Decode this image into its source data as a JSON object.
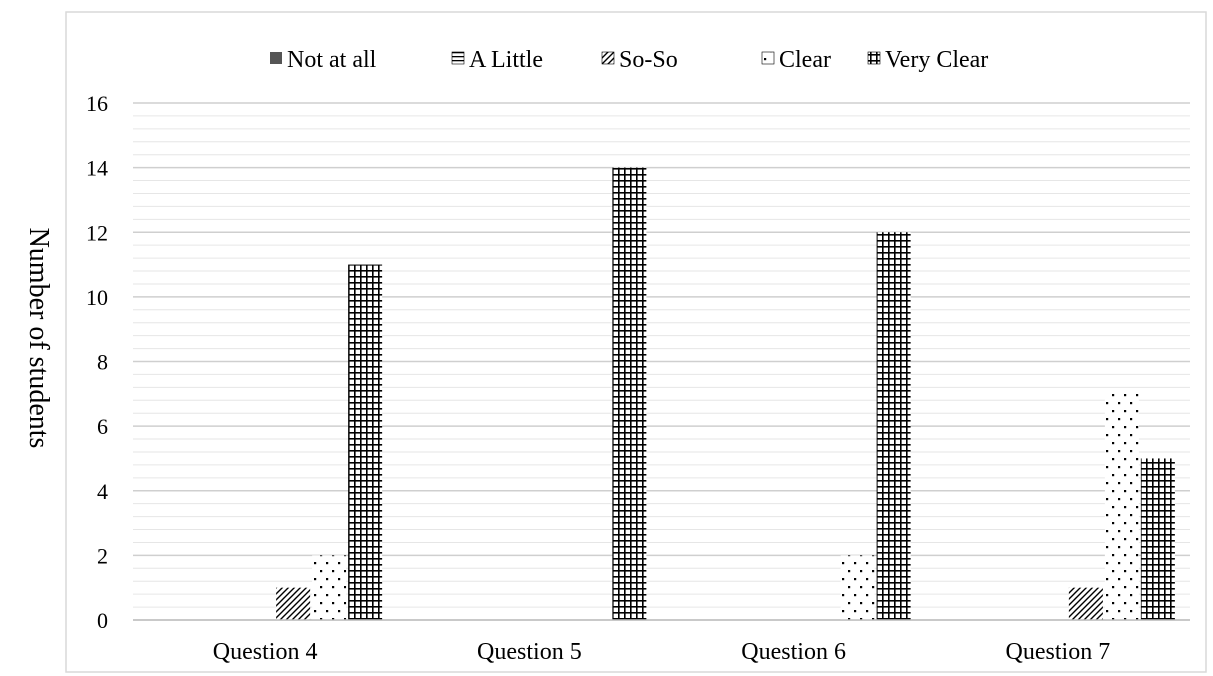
{
  "chart_data": {
    "type": "bar",
    "title": "",
    "xlabel": "",
    "ylabel": "Number of students",
    "ylim": [
      0,
      16
    ],
    "y_major_step": 2,
    "y_minor_step": 0.4,
    "grid": true,
    "legend_position": "top",
    "categories": [
      "Question 4",
      "Question 5",
      "Question 6",
      "Question 7"
    ],
    "series": [
      {
        "name": "Not at all",
        "pattern": "solid-gray",
        "values": [
          0,
          0,
          0,
          0
        ]
      },
      {
        "name": "A Little",
        "pattern": "horizontal-lines",
        "values": [
          0,
          0,
          0,
          0
        ]
      },
      {
        "name": "So-So",
        "pattern": "diagonal-lines",
        "values": [
          1,
          0,
          0,
          1
        ]
      },
      {
        "name": "Clear",
        "pattern": "dots",
        "values": [
          2,
          0,
          2,
          7
        ]
      },
      {
        "name": "Very Clear",
        "pattern": "grid",
        "values": [
          11,
          14,
          12,
          5
        ]
      }
    ]
  }
}
